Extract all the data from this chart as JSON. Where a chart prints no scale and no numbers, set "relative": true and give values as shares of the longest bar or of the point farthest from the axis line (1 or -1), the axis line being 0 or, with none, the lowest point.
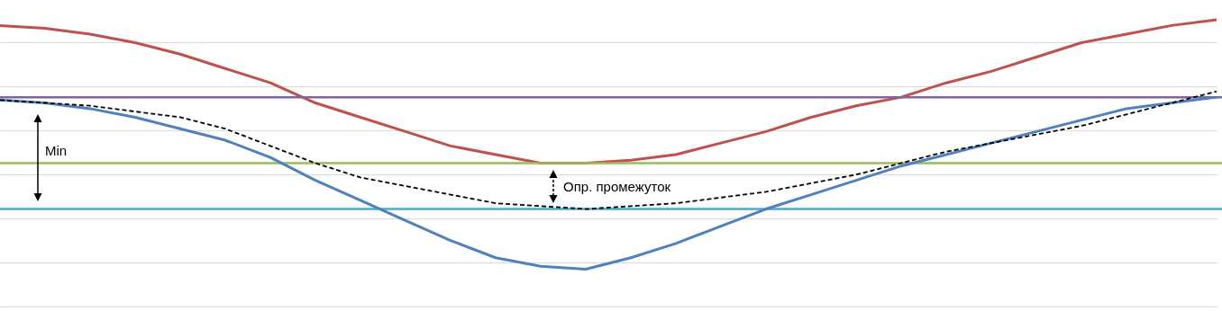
{
  "chart_data": {
    "type": "line",
    "relative": true,
    "tick_labels": false,
    "grid": "y",
    "marker": "none",
    "categories": [
      null,
      null,
      null,
      null,
      null,
      null,
      null,
      null,
      null,
      null,
      null,
      null,
      null,
      null,
      null,
      null,
      null,
      null,
      null,
      null,
      null,
      null,
      null,
      null,
      null,
      null,
      null,
      null
    ],
    "series": [
      {
        "color": "#c0504d",
        "line_style": "solid",
        "values": [
          0.98,
          0.97,
          0.95,
          0.92,
          0.88,
          0.83,
          0.78,
          0.71,
          0.66,
          0.61,
          0.56,
          0.53,
          0.5,
          0.5,
          0.51,
          0.53,
          0.57,
          0.61,
          0.66,
          0.7,
          0.73,
          0.78,
          0.82,
          0.87,
          0.92,
          0.95,
          0.98,
          1
        ]
      },
      {
        "color": "#4f81bd",
        "line_style": "solid",
        "values": [
          0.72,
          0.71,
          0.69,
          0.66,
          0.62,
          0.58,
          0.52,
          0.44,
          0.37,
          0.3,
          0.23,
          0.17,
          0.14,
          0.13,
          0.17,
          0.22,
          0.28,
          0.34,
          0.39,
          0.44,
          0.49,
          0.53,
          0.57,
          0.61,
          0.65,
          0.69,
          0.71,
          0.73
        ]
      },
      {
        "color": "#000000",
        "line_style": "dashed",
        "values": [
          0.72,
          0.71,
          0.7,
          0.68,
          0.66,
          0.62,
          0.56,
          0.5,
          0.45,
          0.42,
          0.39,
          0.36,
          0.35,
          0.34,
          0.35,
          0.36,
          0.38,
          0.4,
          0.43,
          0.46,
          0.5,
          0.54,
          0.57,
          0.6,
          0.63,
          0.67,
          0.71,
          0.75
        ]
      }
    ],
    "ref_lines": [
      {
        "axis": "y",
        "value": 0.73,
        "color": "#8064a2"
      },
      {
        "axis": "y",
        "value": 0.5,
        "color": "#9bbb59"
      },
      {
        "axis": "y",
        "value": 0.34,
        "color": "#4bacc6"
      }
    ],
    "annotations": [
      "Min",
      "Опр. промежуток"
    ]
  }
}
